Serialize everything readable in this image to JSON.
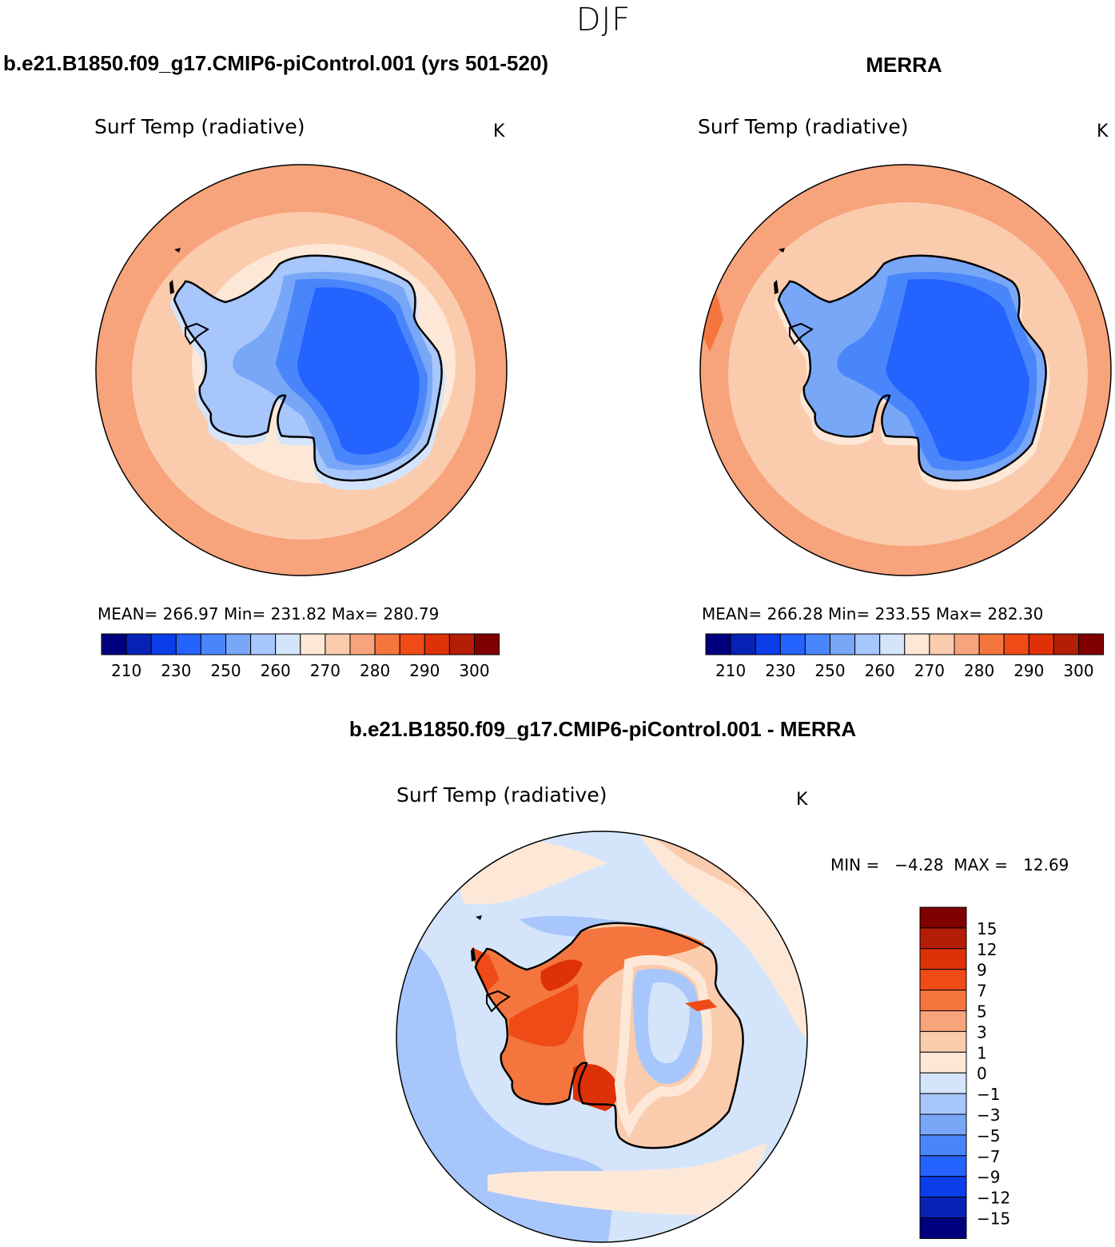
{
  "page_title": "DJF",
  "panels": [
    {
      "heading": "b.e21.B1850.f09_g17.CMIP6-piControl.001 (yrs 501-520)",
      "variable": "Surf Temp (radiative)",
      "units": "K",
      "stats": "MEAN= 266.97   Min= 231.82   Max= 280.79"
    },
    {
      "heading": "MERRA",
      "variable": "Surf Temp (radiative)",
      "units": "K",
      "stats": "MEAN= 266.28   Min= 233.55   Max= 282.30"
    }
  ],
  "diff_panel": {
    "heading": "b.e21.B1850.f09_g17.CMIP6-piControl.001 - MERRA",
    "variable": "Surf Temp (radiative)",
    "units": "K",
    "minmax": "MIN =   −4.28  MAX =   12.69"
  },
  "horizontal_colorbar": {
    "colors": [
      "#00007e",
      "#0623b5",
      "#0b3de8",
      "#2563ff",
      "#4a86fb",
      "#79a7f7",
      "#a7c6fb",
      "#d4e5fb",
      "#fde8d8",
      "#fbcbad",
      "#f7a37b",
      "#f4763e",
      "#f04b17",
      "#de3108",
      "#b41d06",
      "#800000"
    ],
    "labels": [
      "210",
      "230",
      "250",
      "260",
      "270",
      "280",
      "290",
      "300"
    ]
  },
  "vertical_colorbar": {
    "colors": [
      "#800000",
      "#b41d06",
      "#de3108",
      "#f04b17",
      "#f4763e",
      "#f7a37b",
      "#fbcbad",
      "#fde8d8",
      "#d4e5fb",
      "#a7c6fb",
      "#79a7f7",
      "#4a86fb",
      "#2563ff",
      "#0b3de8",
      "#0623b5",
      "#00007e"
    ],
    "labels": [
      "15",
      "12",
      "9",
      "7",
      "5",
      "3",
      "1",
      "0",
      "−1",
      "−3",
      "−5",
      "−7",
      "−9",
      "−12",
      "−15"
    ]
  },
  "map_colors": {
    "ocean_warm": "#f7a37b",
    "ocean_mid": "#fbcbad",
    "ocean_light": "#fde8d8",
    "ice_light": "#d4e5fb",
    "ice_mid": "#a7c6fb",
    "ice_blue": "#79a7f7",
    "ice_deep": "#4a86fb",
    "ice_core": "#2563ff",
    "ice_darkest": "#0b3de8",
    "diff_red": "#f04b17",
    "diff_orange": "#f4763e",
    "diff_dark": "#de3108",
    "coast": "#000000"
  }
}
